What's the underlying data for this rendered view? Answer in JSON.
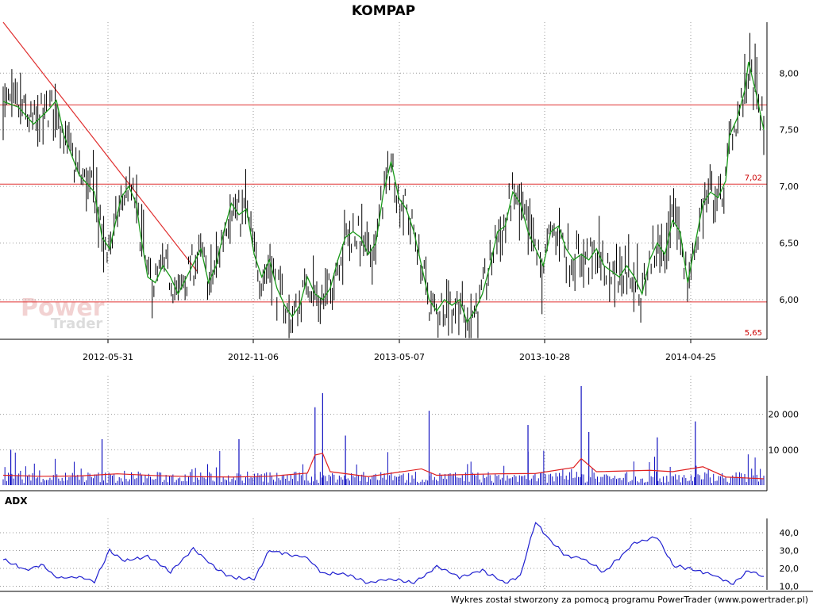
{
  "title": "KOMPAP",
  "footer": "Wykres został stworzony za pomocą programu PowerTrader (www.powertrader.pl)",
  "watermark": {
    "line1": "Power",
    "line2": "Trader"
  },
  "colors": {
    "price": "#000000",
    "ma": "#1a9a1a",
    "level": "#e03030",
    "volume": "#1010c0",
    "volume_ma": "#e02020",
    "adx": "#2020d0"
  },
  "chart_data": [
    {
      "name": "price",
      "type": "line",
      "title": "KOMPAP",
      "x_labels": [
        "2012-05-31",
        "2012-11-06",
        "2013-05-07",
        "2013-10-28",
        "2014-04-25"
      ],
      "y_ticks": [
        "6,00",
        "6,50",
        "7,00",
        "7,50",
        "8,00"
      ],
      "ylim": [
        5.65,
        8.45
      ],
      "grid": true,
      "levels": [
        {
          "value": 7.72,
          "label": ""
        },
        {
          "value": 7.02,
          "label": "7,02"
        },
        {
          "value": 5.98,
          "label": ""
        },
        {
          "value": 5.65,
          "label": "5,65"
        }
      ],
      "trendline": {
        "from": [
          0,
          8.45
        ],
        "to": [
          0.255,
          6.25
        ]
      },
      "ma_points": [
        [
          0.0,
          7.75
        ],
        [
          0.02,
          7.7
        ],
        [
          0.04,
          7.55
        ],
        [
          0.06,
          7.68
        ],
        [
          0.07,
          7.76
        ],
        [
          0.08,
          7.45
        ],
        [
          0.1,
          7.1
        ],
        [
          0.12,
          6.95
        ],
        [
          0.13,
          6.55
        ],
        [
          0.14,
          6.45
        ],
        [
          0.155,
          6.9
        ],
        [
          0.165,
          7.0
        ],
        [
          0.175,
          6.85
        ],
        [
          0.18,
          6.6
        ],
        [
          0.19,
          6.2
        ],
        [
          0.2,
          6.15
        ],
        [
          0.21,
          6.3
        ],
        [
          0.22,
          6.2
        ],
        [
          0.23,
          6.05
        ],
        [
          0.245,
          6.25
        ],
        [
          0.26,
          6.45
        ],
        [
          0.27,
          6.15
        ],
        [
          0.28,
          6.3
        ],
        [
          0.29,
          6.6
        ],
        [
          0.3,
          6.85
        ],
        [
          0.31,
          6.75
        ],
        [
          0.32,
          6.8
        ],
        [
          0.33,
          6.4
        ],
        [
          0.34,
          6.2
        ],
        [
          0.35,
          6.35
        ],
        [
          0.36,
          6.1
        ],
        [
          0.37,
          5.95
        ],
        [
          0.38,
          5.85
        ],
        [
          0.39,
          5.95
        ],
        [
          0.4,
          6.2
        ],
        [
          0.41,
          6.05
        ],
        [
          0.42,
          6.0
        ],
        [
          0.43,
          6.1
        ],
        [
          0.44,
          6.35
        ],
        [
          0.45,
          6.55
        ],
        [
          0.46,
          6.6
        ],
        [
          0.47,
          6.55
        ],
        [
          0.48,
          6.4
        ],
        [
          0.49,
          6.5
        ],
        [
          0.5,
          6.95
        ],
        [
          0.51,
          7.22
        ],
        [
          0.52,
          6.9
        ],
        [
          0.53,
          6.8
        ],
        [
          0.54,
          6.6
        ],
        [
          0.55,
          6.3
        ],
        [
          0.56,
          6.0
        ],
        [
          0.57,
          5.9
        ],
        [
          0.58,
          6.0
        ],
        [
          0.59,
          5.95
        ],
        [
          0.6,
          6.0
        ],
        [
          0.61,
          5.8
        ],
        [
          0.62,
          5.9
        ],
        [
          0.63,
          6.05
        ],
        [
          0.64,
          6.3
        ],
        [
          0.65,
          6.6
        ],
        [
          0.66,
          6.65
        ],
        [
          0.67,
          6.95
        ],
        [
          0.68,
          6.85
        ],
        [
          0.69,
          6.6
        ],
        [
          0.7,
          6.45
        ],
        [
          0.71,
          6.3
        ],
        [
          0.72,
          6.6
        ],
        [
          0.73,
          6.65
        ],
        [
          0.74,
          6.45
        ],
        [
          0.75,
          6.35
        ],
        [
          0.76,
          6.4
        ],
        [
          0.77,
          6.35
        ],
        [
          0.78,
          6.45
        ],
        [
          0.79,
          6.3
        ],
        [
          0.8,
          6.25
        ],
        [
          0.81,
          6.2
        ],
        [
          0.82,
          6.3
        ],
        [
          0.83,
          6.2
        ],
        [
          0.84,
          6.05
        ],
        [
          0.85,
          6.35
        ],
        [
          0.86,
          6.5
        ],
        [
          0.87,
          6.4
        ],
        [
          0.88,
          6.7
        ],
        [
          0.89,
          6.6
        ],
        [
          0.9,
          6.15
        ],
        [
          0.91,
          6.5
        ],
        [
          0.92,
          6.85
        ],
        [
          0.93,
          6.95
        ],
        [
          0.94,
          6.9
        ],
        [
          0.95,
          7.05
        ],
        [
          0.955,
          7.45
        ],
        [
          0.965,
          7.6
        ],
        [
          0.975,
          7.85
        ],
        [
          0.98,
          8.1
        ],
        [
          0.99,
          7.82
        ],
        [
          1.0,
          7.5
        ]
      ]
    },
    {
      "name": "volume",
      "type": "bar",
      "y_ticks": [
        "10 000",
        "20 000"
      ],
      "ylim": [
        0,
        30000
      ],
      "grid": true,
      "spikes": [
        [
          0.13,
          13000
        ],
        [
          0.41,
          22000
        ],
        [
          0.42,
          26000
        ],
        [
          0.56,
          21000
        ],
        [
          0.76,
          28000
        ],
        [
          0.91,
          18000
        ],
        [
          0.86,
          13500
        ],
        [
          0.45,
          14000
        ],
        [
          0.69,
          17000
        ],
        [
          0.77,
          15000
        ],
        [
          0.01,
          10000
        ],
        [
          0.31,
          13000
        ]
      ],
      "ma_points": [
        [
          0.0,
          2800
        ],
        [
          0.05,
          2500
        ],
        [
          0.1,
          2600
        ],
        [
          0.15,
          3200
        ],
        [
          0.2,
          2700
        ],
        [
          0.25,
          2400
        ],
        [
          0.3,
          2300
        ],
        [
          0.35,
          2500
        ],
        [
          0.4,
          3400
        ],
        [
          0.41,
          8500
        ],
        [
          0.42,
          9000
        ],
        [
          0.43,
          3800
        ],
        [
          0.48,
          2400
        ],
        [
          0.55,
          4600
        ],
        [
          0.57,
          2800
        ],
        [
          0.65,
          3200
        ],
        [
          0.7,
          3300
        ],
        [
          0.75,
          5000
        ],
        [
          0.76,
          7500
        ],
        [
          0.78,
          3800
        ],
        [
          0.85,
          4200
        ],
        [
          0.88,
          3800
        ],
        [
          0.92,
          5200
        ],
        [
          0.95,
          2300
        ],
        [
          1.0,
          1800
        ]
      ]
    },
    {
      "name": "adx",
      "type": "line",
      "title": "ADX",
      "y_ticks": [
        "10,0",
        "20,0",
        "30,0",
        "40,0"
      ],
      "ylim": [
        8,
        48
      ],
      "grid": true,
      "points": [
        [
          0.0,
          25
        ],
        [
          0.03,
          19
        ],
        [
          0.05,
          22
        ],
        [
          0.07,
          15
        ],
        [
          0.1,
          15
        ],
        [
          0.12,
          13
        ],
        [
          0.14,
          30
        ],
        [
          0.16,
          24
        ],
        [
          0.19,
          27
        ],
        [
          0.22,
          18
        ],
        [
          0.25,
          31
        ],
        [
          0.28,
          20
        ],
        [
          0.3,
          15
        ],
        [
          0.33,
          14
        ],
        [
          0.35,
          30
        ],
        [
          0.4,
          26
        ],
        [
          0.42,
          17
        ],
        [
          0.45,
          17
        ],
        [
          0.48,
          12
        ],
        [
          0.51,
          14
        ],
        [
          0.54,
          12
        ],
        [
          0.57,
          21
        ],
        [
          0.6,
          15
        ],
        [
          0.63,
          19
        ],
        [
          0.66,
          12
        ],
        [
          0.68,
          16
        ],
        [
          0.7,
          46
        ],
        [
          0.72,
          35
        ],
        [
          0.74,
          27
        ],
        [
          0.76,
          26
        ],
        [
          0.79,
          18
        ],
        [
          0.83,
          34
        ],
        [
          0.86,
          38
        ],
        [
          0.88,
          22
        ],
        [
          0.9,
          20
        ],
        [
          0.93,
          17
        ],
        [
          0.96,
          11
        ],
        [
          0.98,
          19
        ],
        [
          1.0,
          15
        ]
      ]
    }
  ]
}
